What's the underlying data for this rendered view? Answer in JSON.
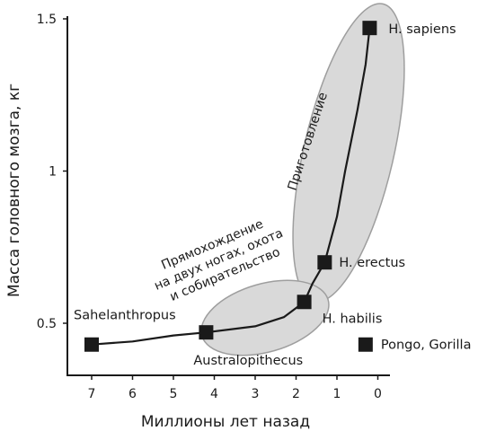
{
  "chart_data": {
    "type": "line",
    "xlabel": "Миллионы лет назад",
    "ylabel": "Масса головного мозга, кг",
    "xlim": [
      7.6,
      -0.3
    ],
    "ylim": [
      0.35,
      1.6
    ],
    "x_ticks": [
      "7",
      "6",
      "5",
      "4",
      "3",
      "2",
      "1",
      "0"
    ],
    "y_ticks": [
      "0.5",
      "1",
      "1.5"
    ],
    "series": [
      {
        "points": [
          {
            "x": 7.0,
            "y": 0.43,
            "label": "Sahelanthropus",
            "marker": true
          },
          {
            "x": 6.0,
            "y": 0.44,
            "marker": false
          },
          {
            "x": 5.0,
            "y": 0.46,
            "marker": false
          },
          {
            "x": 4.2,
            "y": 0.47,
            "label": "Australopithecus",
            "marker": true
          },
          {
            "x": 3.0,
            "y": 0.49,
            "marker": false
          },
          {
            "x": 2.3,
            "y": 0.52,
            "marker": false
          },
          {
            "x": 1.8,
            "y": 0.57,
            "label": "H. habilis",
            "marker": true
          },
          {
            "x": 1.6,
            "y": 0.63,
            "marker": false
          },
          {
            "x": 1.3,
            "y": 0.7,
            "label": "H. erectus",
            "marker": true
          },
          {
            "x": 1.0,
            "y": 0.85,
            "marker": false
          },
          {
            "x": 0.8,
            "y": 1.0,
            "marker": false
          },
          {
            "x": 0.5,
            "y": 1.2,
            "marker": false
          },
          {
            "x": 0.3,
            "y": 1.35,
            "marker": false
          },
          {
            "x": 0.2,
            "y": 1.47,
            "label": "H. sapiens",
            "marker": true
          }
        ]
      }
    ],
    "separate_points": [
      {
        "x": 0.3,
        "y": 0.43,
        "label": "Pongo, Gorilla"
      }
    ],
    "annotations": [
      {
        "text": "Приготовление"
      },
      {
        "text_lines": [
          "Прямохождение",
          "на двух ногах, охота",
          "и собирательство"
        ]
      }
    ],
    "colors": {
      "line": "#1a1a1a",
      "marker": "#1a1a1a",
      "ellipse_fill": "#d9d9d9",
      "ellipse_stroke": "#9e9e9e"
    }
  }
}
